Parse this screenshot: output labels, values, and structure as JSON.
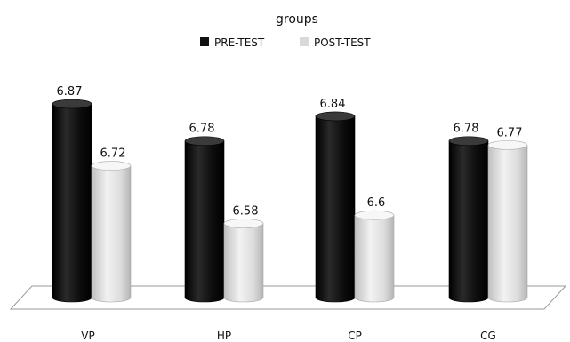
{
  "chart_data": {
    "type": "bar",
    "title": "groups",
    "legend_position": "top",
    "categories": [
      "VP",
      "HP",
      "CP",
      "CG"
    ],
    "series": [
      {
        "name": "PRE-TEST",
        "color": "#111111",
        "values": [
          6.87,
          6.78,
          6.84,
          6.78
        ],
        "labels": [
          "6.87",
          "6.78",
          "6.84",
          "6.78"
        ]
      },
      {
        "name": "POST-TEST",
        "color": "#d9d9d9",
        "values": [
          6.72,
          6.58,
          6.6,
          6.77
        ],
        "labels": [
          "6.72",
          "6.58",
          "6.6",
          "6.77"
        ]
      }
    ],
    "grid": false,
    "style": "3d-cylinder"
  }
}
